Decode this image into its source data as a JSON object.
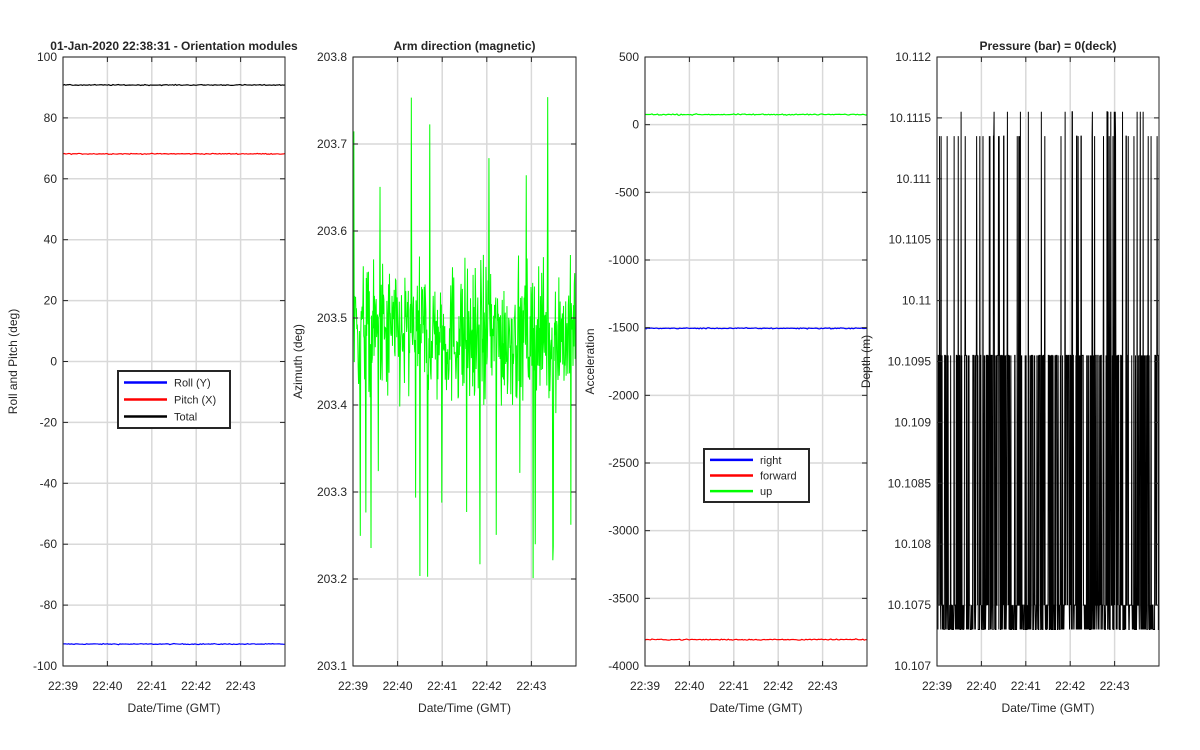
{
  "figure": {
    "background": "#ffffff",
    "grid_color": "#d9d9d9",
    "axis_color": "#262626"
  },
  "chart_data": [
    {
      "type": "line",
      "title": "01-Jan-2020 22:38:31 - Orientation modules",
      "xlabel": "Date/Time (GMT)",
      "ylabel": "Roll and Pitch (deg)",
      "x_tick_labels": [
        "22:39",
        "22:40",
        "22:41",
        "22:42",
        "22:43"
      ],
      "x_tick_values": [
        0,
        1,
        2,
        3,
        4
      ],
      "xlim": [
        0,
        5
      ],
      "ylim": [
        -100,
        100
      ],
      "y_ticks": [
        -100,
        -80,
        -60,
        -40,
        -20,
        0,
        20,
        40,
        60,
        80,
        100
      ],
      "y_tick_labels": [
        "-100",
        "-80",
        "-60",
        "-40",
        "-20",
        "0",
        "20",
        "40",
        "60",
        "80",
        "100"
      ],
      "grid": true,
      "legend": {
        "position": "center",
        "entries": [
          "Roll (Y)",
          "Pitch (X)",
          "Total"
        ]
      },
      "series": [
        {
          "name": "Roll (Y)",
          "color": "#0000ff",
          "level": -92.8,
          "noise": 0.15
        },
        {
          "name": "Pitch (X)",
          "color": "#ff0000",
          "level": 68.2,
          "noise": 0.15
        },
        {
          "name": "Total",
          "color": "#000000",
          "level": 90.8,
          "noise": 0.15
        }
      ]
    },
    {
      "type": "line",
      "title": "Arm direction (magnetic)",
      "xlabel": "Date/Time (GMT)",
      "ylabel": "Azimuth (deg)",
      "x_tick_labels": [
        "22:39",
        "22:40",
        "22:41",
        "22:42",
        "22:43"
      ],
      "x_tick_values": [
        0,
        1,
        2,
        3,
        4
      ],
      "xlim": [
        0,
        5
      ],
      "ylim": [
        203.1,
        203.8
      ],
      "y_ticks": [
        203.1,
        203.2,
        203.3,
        203.4,
        203.5,
        203.6,
        203.7,
        203.8
      ],
      "y_tick_labels": [
        "203.1",
        "203.2",
        "203.3",
        "203.4",
        "203.5",
        "203.6",
        "203.7",
        "203.8"
      ],
      "grid": true,
      "series": [
        {
          "color": "#00ff00",
          "kind": "noisy",
          "min": 203.18,
          "max": 203.76,
          "mid": 203.48,
          "spread": 0.08
        }
      ]
    },
    {
      "type": "line",
      "title": "",
      "xlabel": "Date/Time (GMT)",
      "ylabel": "Acceleration",
      "x_tick_labels": [
        "22:39",
        "22:40",
        "22:41",
        "22:42",
        "22:43"
      ],
      "x_tick_values": [
        0,
        1,
        2,
        3,
        4
      ],
      "xlim": [
        0,
        5
      ],
      "ylim": [
        -4000,
        500
      ],
      "y_ticks": [
        -4000,
        -3500,
        -3000,
        -2500,
        -2000,
        -1500,
        -1000,
        -500,
        0,
        500
      ],
      "y_tick_labels": [
        "-4000",
        "-3500",
        "-3000",
        "-2500",
        "-2000",
        "-1500",
        "-1000",
        "-500",
        "0",
        "500"
      ],
      "grid": true,
      "legend": {
        "position": "lower-center",
        "entries": [
          "right",
          "forward",
          "up"
        ]
      },
      "series": [
        {
          "name": "right",
          "color": "#0000ff",
          "level": -1505,
          "noise": 4
        },
        {
          "name": "forward",
          "color": "#ff0000",
          "level": -3805,
          "noise": 4
        },
        {
          "name": "up",
          "color": "#00ff00",
          "level": 75,
          "noise": 4
        }
      ]
    },
    {
      "type": "line",
      "title": "Pressure (bar) = 0(deck)",
      "xlabel": "Date/Time (GMT)",
      "ylabel": "Depth (m)",
      "x_tick_labels": [
        "22:39",
        "22:40",
        "22:41",
        "22:42",
        "22:43"
      ],
      "x_tick_values": [
        0,
        1,
        2,
        3,
        4
      ],
      "xlim": [
        0,
        5
      ],
      "ylim": [
        10.107,
        10.112
      ],
      "y_ticks": [
        10.107,
        10.1075,
        10.108,
        10.1085,
        10.109,
        10.1095,
        10.11,
        10.1105,
        10.111,
        10.1115,
        10.112
      ],
      "y_tick_labels": [
        "10.107",
        "10.1075",
        "10.108",
        "10.1085",
        "10.109",
        "10.1095",
        "10.11",
        "10.1105",
        "10.111",
        "10.1115",
        "10.112"
      ],
      "grid": true,
      "series": [
        {
          "color": "#000000",
          "kind": "quantized",
          "levels": [
            10.1073,
            10.1075,
            10.10955,
            10.11135,
            10.11155
          ]
        }
      ]
    }
  ]
}
